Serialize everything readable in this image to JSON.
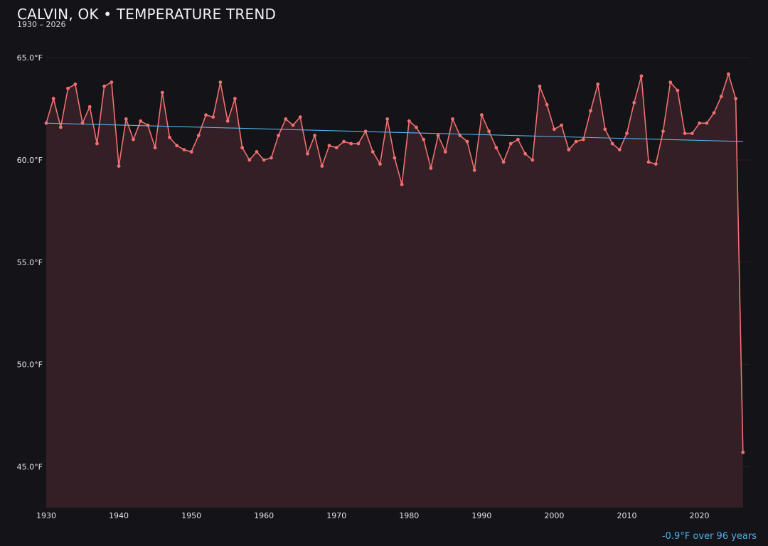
{
  "header": {
    "title": "CALVIN, OK • TEMPERATURE TREND",
    "subtitle": "1930 – 2026"
  },
  "footer": {
    "trend_note": "-0.9°F over 96 years"
  },
  "colors": {
    "background": "#131318",
    "line": "#f07070",
    "area_fill": "#331f25",
    "trend": "#58b4ec",
    "footer_text": "#4fb0e8"
  },
  "chart_data": {
    "type": "line",
    "title": "CALVIN, OK • TEMPERATURE TREND",
    "subtitle": "1930 – 2026",
    "xlabel": "",
    "ylabel": "",
    "xlim": [
      1930,
      2027
    ],
    "ylim": [
      43,
      66.5
    ],
    "x_ticks": [
      1930,
      1940,
      1950,
      1960,
      1970,
      1980,
      1990,
      2000,
      2010,
      2020
    ],
    "x_tick_labels": [
      "1930",
      "1940",
      "1950",
      "1960",
      "1970",
      "1980",
      "1990",
      "2000",
      "2010",
      "2020"
    ],
    "y_ticks": [
      45,
      50,
      55,
      60,
      65
    ],
    "y_tick_labels": [
      "45.0°F",
      "50.0°F",
      "55.0°F",
      "60.0°F",
      "65.0°F"
    ],
    "grid": "horizontal",
    "area_fill": true,
    "series": [
      {
        "x": [
          1930,
          1931,
          1932,
          1933,
          1934,
          1935,
          1936,
          1937,
          1938,
          1939,
          1940,
          1941,
          1942,
          1943,
          1944,
          1945,
          1946,
          1947,
          1948,
          1949,
          1950,
          1951,
          1952,
          1953,
          1954,
          1955,
          1956,
          1957,
          1958,
          1959,
          1960,
          1961,
          1962,
          1963,
          1964,
          1965,
          1966,
          1967,
          1968,
          1969,
          1970,
          1971,
          1972,
          1973,
          1974,
          1975,
          1976,
          1977,
          1978,
          1979,
          1980,
          1981,
          1982,
          1983,
          1984,
          1985,
          1986,
          1987,
          1988,
          1989,
          1990,
          1991,
          1992,
          1993,
          1994,
          1995,
          1996,
          1997,
          1998,
          1999,
          2000,
          2001,
          2002,
          2003,
          2004,
          2005,
          2006,
          2007,
          2008,
          2009,
          2010,
          2011,
          2012,
          2013,
          2014,
          2015,
          2016,
          2017,
          2018,
          2019,
          2020,
          2021,
          2022,
          2023,
          2024,
          2025,
          2026
        ],
        "values": [
          61.8,
          63.0,
          61.6,
          63.5,
          63.7,
          61.8,
          62.6,
          60.8,
          63.6,
          63.8,
          59.7,
          62.0,
          61.0,
          61.9,
          61.7,
          60.6,
          63.3,
          61.1,
          60.7,
          60.5,
          60.4,
          61.2,
          62.2,
          62.1,
          63.8,
          61.9,
          63.0,
          60.6,
          60.0,
          60.4,
          60.0,
          60.1,
          61.2,
          62.0,
          61.7,
          62.1,
          60.3,
          61.2,
          59.7,
          60.7,
          60.6,
          60.9,
          60.8,
          60.8,
          61.4,
          60.4,
          59.8,
          62.0,
          60.1,
          58.8,
          61.9,
          61.6,
          61.0,
          59.6,
          61.2,
          60.4,
          62.0,
          61.2,
          60.9,
          59.5,
          62.2,
          61.4,
          60.6,
          59.9,
          60.8,
          61.0,
          60.3,
          60.0,
          63.6,
          62.7,
          61.5,
          61.7,
          60.5,
          60.9,
          61.0,
          62.4,
          63.7,
          61.5,
          60.8,
          60.5,
          61.3,
          62.8,
          64.1,
          59.9,
          59.8,
          61.4,
          63.8,
          63.4,
          61.3,
          61.3,
          61.8,
          61.8,
          62.3,
          63.1,
          64.2,
          63.0,
          45.7
        ]
      }
    ],
    "trend_line": {
      "x": [
        1930,
        2026
      ],
      "values": [
        61.8,
        60.9
      ]
    },
    "annotation": "-0.9°F over 96 years"
  }
}
